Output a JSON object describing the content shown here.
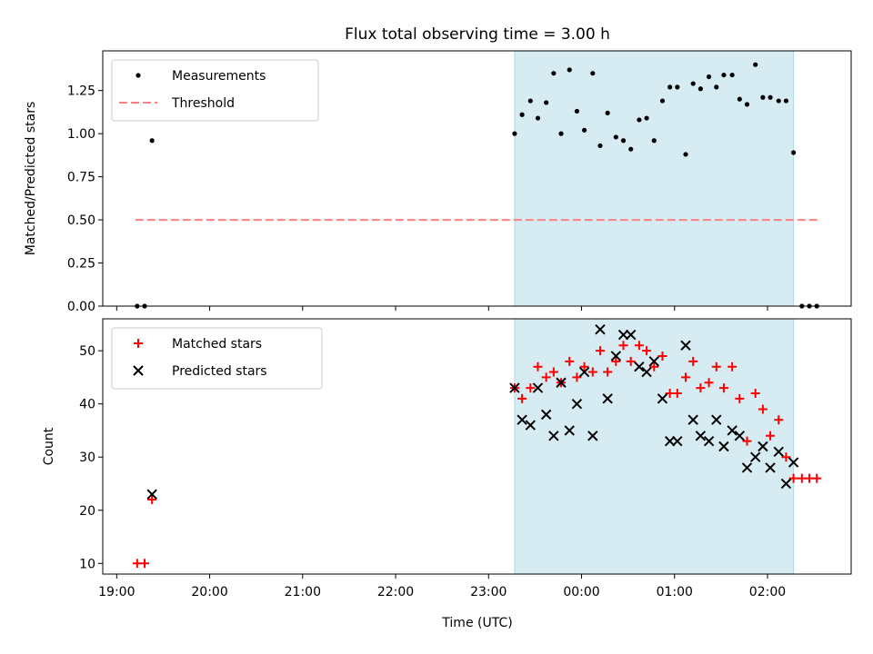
{
  "chart_data": {
    "type": "scatter",
    "title": "Flux total observing time = 3.00 h",
    "shaded_region": {
      "start": 23.28,
      "end": 26.28,
      "color": "#add8e6"
    },
    "xlabel": "Time (UTC)",
    "xlim": [
      18.85,
      26.9
    ],
    "xticks": [
      {
        "v": 19,
        "label": "19:00"
      },
      {
        "v": 20,
        "label": "20:00"
      },
      {
        "v": 21,
        "label": "21:00"
      },
      {
        "v": 22,
        "label": "22:00"
      },
      {
        "v": 23,
        "label": "23:00"
      },
      {
        "v": 24,
        "label": "00:00"
      },
      {
        "v": 25,
        "label": "01:00"
      },
      {
        "v": 26,
        "label": "02:00"
      }
    ],
    "panels": [
      {
        "ylabel": "Matched/Predicted stars",
        "ylim": [
          0,
          1.48
        ],
        "yticks": [
          {
            "v": 0,
            "label": "0.00"
          },
          {
            "v": 0.25,
            "label": "0.25"
          },
          {
            "v": 0.5,
            "label": "0.50"
          },
          {
            "v": 0.75,
            "label": "0.75"
          },
          {
            "v": 1.0,
            "label": "1.00"
          },
          {
            "v": 1.25,
            "label": "1.25"
          }
        ],
        "legend": {
          "position": "upper left",
          "entries": [
            {
              "label": "Measurements",
              "marker": "dot",
              "color": "#000000"
            },
            {
              "label": "Threshold",
              "marker": "dash",
              "color": "#ff8080"
            }
          ]
        },
        "threshold": {
          "value": 0.5,
          "x": [
            19.2,
            26.55
          ],
          "color": "#ff8080"
        },
        "series": [
          {
            "name": "Measurements",
            "marker": "dot",
            "color": "#000000",
            "x": [
              19.22,
              19.3,
              19.38,
              23.28,
              23.36,
              23.45,
              23.53,
              23.62,
              23.7,
              23.78,
              23.87,
              23.95,
              24.03,
              24.12,
              24.2,
              24.28,
              24.37,
              24.45,
              24.53,
              24.62,
              24.7,
              24.78,
              24.87,
              24.95,
              25.03,
              25.12,
              25.2,
              25.28,
              25.37,
              25.45,
              25.53,
              25.62,
              25.7,
              25.78,
              25.87,
              25.95,
              26.03,
              26.12,
              26.2,
              26.28,
              26.37,
              26.45,
              26.53
            ],
            "y": [
              0.0,
              0.0,
              0.96,
              1.0,
              1.11,
              1.19,
              1.09,
              1.18,
              1.35,
              1.0,
              1.37,
              1.13,
              1.02,
              1.35,
              0.93,
              1.12,
              0.98,
              0.96,
              0.91,
              1.08,
              1.09,
              0.96,
              1.19,
              1.27,
              1.27,
              0.88,
              1.29,
              1.26,
              1.33,
              1.27,
              1.34,
              1.34,
              1.2,
              1.17,
              1.4,
              1.21,
              1.21,
              1.19,
              1.19,
              0.89,
              0.0,
              0.0,
              0.0
            ]
          }
        ]
      },
      {
        "ylabel": "Count",
        "ylim": [
          8,
          56
        ],
        "yticks": [
          {
            "v": 10,
            "label": "10"
          },
          {
            "v": 20,
            "label": "20"
          },
          {
            "v": 30,
            "label": "30"
          },
          {
            "v": 40,
            "label": "40"
          },
          {
            "v": 50,
            "label": "50"
          }
        ],
        "legend": {
          "position": "upper left",
          "entries": [
            {
              "label": "Matched stars",
              "marker": "plus",
              "color": "#ff0000"
            },
            {
              "label": "Predicted stars",
              "marker": "x",
              "color": "#000000"
            }
          ]
        },
        "series": [
          {
            "name": "Matched stars",
            "marker": "plus",
            "color": "#ff0000",
            "x": [
              19.22,
              19.3,
              19.38,
              23.28,
              23.36,
              23.45,
              23.53,
              23.62,
              23.7,
              23.78,
              23.87,
              23.95,
              24.03,
              24.12,
              24.2,
              24.28,
              24.37,
              24.45,
              24.53,
              24.62,
              24.7,
              24.78,
              24.87,
              24.95,
              25.03,
              25.12,
              25.2,
              25.28,
              25.37,
              25.45,
              25.53,
              25.62,
              25.7,
              25.78,
              25.87,
              25.95,
              26.03,
              26.12,
              26.2,
              26.28,
              26.37,
              26.45,
              26.53
            ],
            "y": [
              10,
              10,
              22,
              43,
              41,
              43,
              47,
              45,
              46,
              44,
              48,
              45,
              47,
              46,
              50,
              46,
              48,
              51,
              48,
              51,
              50,
              47,
              49,
              42,
              42,
              45,
              48,
              43,
              44,
              47,
              43,
              47,
              41,
              33,
              42,
              39,
              34,
              37,
              30,
              26,
              26,
              26,
              26
            ]
          },
          {
            "name": "Predicted stars",
            "marker": "x",
            "color": "#000000",
            "x": [
              19.38,
              23.28,
              23.36,
              23.45,
              23.53,
              23.62,
              23.7,
              23.78,
              23.87,
              23.95,
              24.03,
              24.12,
              24.2,
              24.28,
              24.37,
              24.45,
              24.53,
              24.62,
              24.7,
              24.78,
              24.87,
              24.95,
              25.03,
              25.12,
              25.2,
              25.28,
              25.37,
              25.45,
              25.53,
              25.62,
              25.7,
              25.78,
              25.87,
              25.95,
              26.03,
              26.12,
              26.2,
              26.28
            ],
            "y": [
              23,
              43,
              37,
              36,
              43,
              38,
              34,
              44,
              35,
              40,
              46,
              34,
              54,
              41,
              49,
              53,
              53,
              47,
              46,
              48,
              41,
              33,
              33,
              51,
              37,
              34,
              33,
              37,
              32,
              35,
              34,
              28,
              30,
              32,
              28,
              31,
              25,
              29
            ]
          }
        ]
      }
    ]
  }
}
